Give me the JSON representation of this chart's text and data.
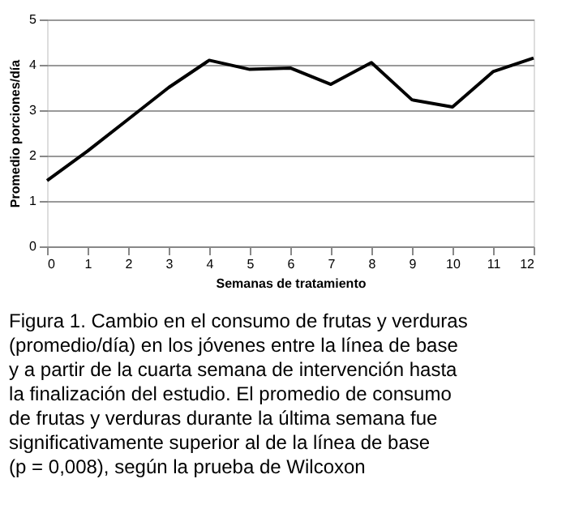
{
  "chart_data": {
    "type": "line",
    "xlabel": "Semanas de tratamiento",
    "ylabel": "Promedio porciones/día",
    "x": [
      0,
      1,
      2,
      3,
      4,
      5,
      6,
      7,
      8,
      9,
      10,
      11,
      12
    ],
    "series": [
      {
        "color": "#000000",
        "values": [
          1.45,
          2.1,
          2.8,
          3.5,
          4.1,
          3.9,
          3.93,
          3.57,
          4.05,
          3.23,
          3.07,
          3.85,
          4.15
        ]
      }
    ],
    "xlim": [
      0,
      12
    ],
    "xticks": [
      0,
      1,
      2,
      3,
      4,
      5,
      6,
      7,
      8,
      9,
      10,
      11,
      12
    ],
    "ylim": [
      0,
      5
    ],
    "yticks": [
      0,
      1,
      2,
      3,
      4,
      5
    ],
    "grid": "y",
    "annotations": [
      "Figura 1. Cambio en el consumo de frutas y verduras (promedio/día) en los jóvenes entre la línea de base y a partir de la cuarta semana de intervención hasta la finalización del estudio. El promedio de consumo de frutas y verduras durante la última semana fue significativamente superior al de la línea de base (p = 0,008), según la prueba de Wilcoxon"
    ]
  }
}
